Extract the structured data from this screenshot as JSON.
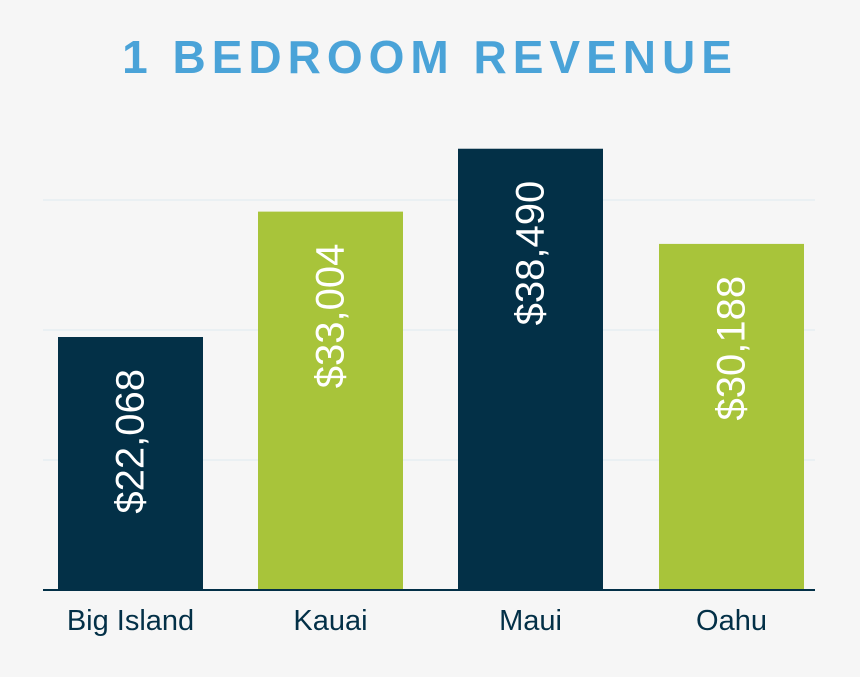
{
  "chart_data": {
    "type": "bar",
    "title": "1 BEDROOM REVENUE",
    "categories": [
      "Big Island",
      "Kauai",
      "Maui",
      "Oahu"
    ],
    "values": [
      22068,
      33004,
      38490,
      30188
    ],
    "data_labels": [
      "$22,068",
      "$33,004",
      "$38,490",
      "$30,188"
    ],
    "colors": [
      "#033047",
      "#a8c43a",
      "#033047",
      "#a8c43a"
    ],
    "title_color": "#4aa3d8",
    "xlabel": "",
    "ylabel": "",
    "ylim": [
      0,
      40000
    ],
    "grid": true,
    "legend": "none"
  }
}
